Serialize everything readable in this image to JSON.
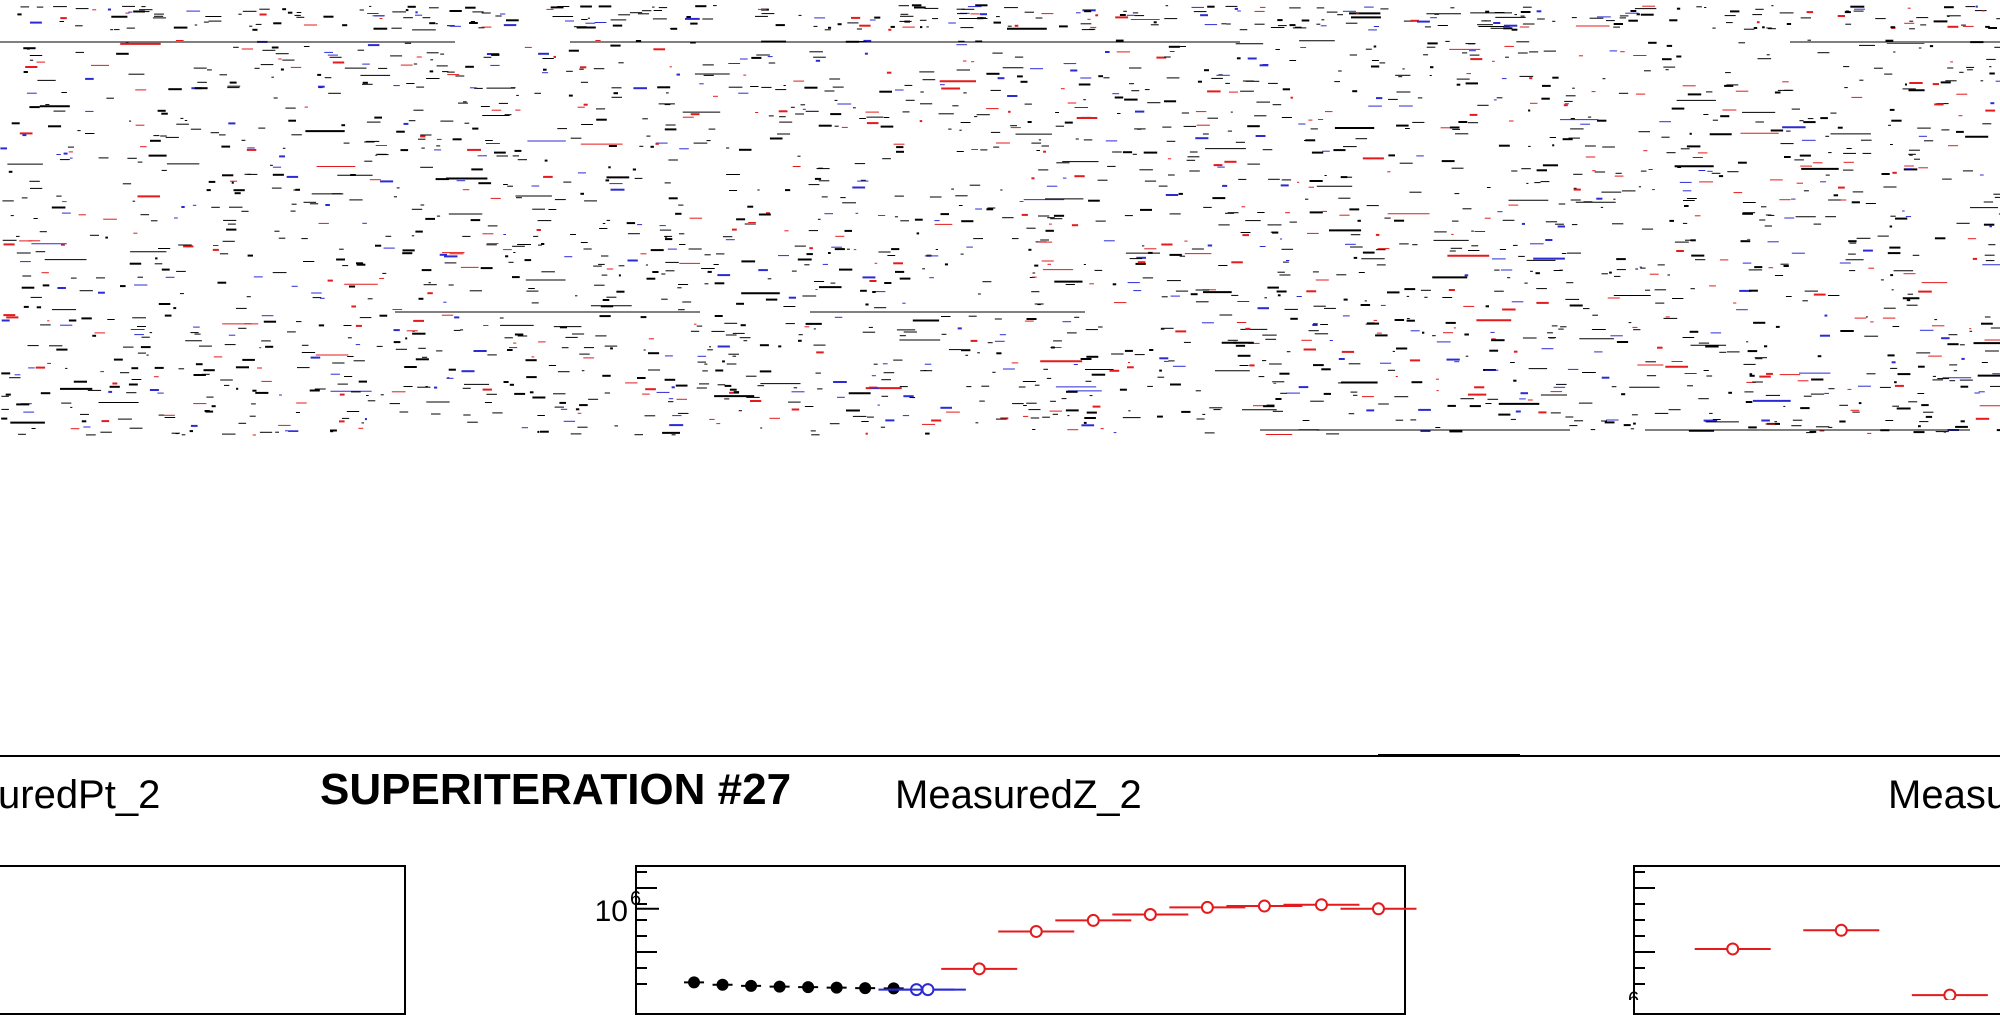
{
  "header": {
    "superiteration_label": "SUPERITERATION #27"
  },
  "panels": [
    {
      "title": "uredPt_2"
    },
    {
      "title": "MeasuredZ_2"
    },
    {
      "title": "Measu"
    }
  ],
  "colors": {
    "series_black": "#000000",
    "series_red": "#e41a1c",
    "series_blue": "#2b2bd6"
  },
  "chart_data": [
    {
      "type": "scatter",
      "title": "MeasuredZ_2",
      "y_scale": "log",
      "ytick_labels": [
        "10"
      ],
      "ytick_exponents": [
        "6"
      ],
      "series": [
        {
          "color": "#e41a1c",
          "marker": "open-circle",
          "x": [
            6,
            7,
            8,
            9,
            10,
            11,
            12,
            13
          ],
          "y": [
            650000,
            850000,
            920000,
            960000,
            1010000,
            1020000,
            1030000,
            1000000
          ]
        },
        {
          "color": "#000000",
          "marker": "filled-circle",
          "x": [
            1,
            1.5,
            2,
            2.5,
            3,
            3.5,
            4,
            4.5
          ],
          "y": [
            590000,
            580000,
            575000,
            572000,
            570000,
            568000,
            566000,
            565000
          ]
        },
        {
          "color": "#2b2bd6",
          "marker": "open-circle",
          "x": [
            4.9,
            5.1
          ],
          "y": [
            560000,
            560000
          ]
        }
      ]
    },
    {
      "type": "scatter",
      "title": "Measu",
      "y_scale": "log",
      "ytick_labels": [
        "10"
      ],
      "ytick_exponents": [
        "6"
      ],
      "series": [
        {
          "color": "#e41a1c",
          "marker": "open-circle",
          "x": [
            1,
            2,
            3
          ],
          "y": [
            1500000,
            1700000,
            1100000
          ]
        }
      ]
    }
  ]
}
